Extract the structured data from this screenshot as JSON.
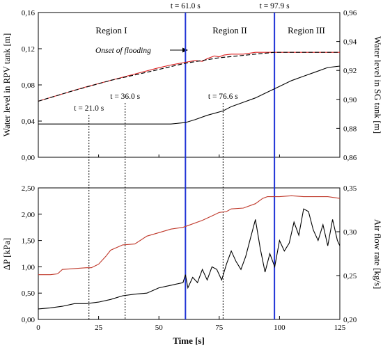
{
  "chart_data": [
    {
      "type": "line",
      "title": "",
      "xlabel": "",
      "ylabel": "Water level in RPV tank [m]",
      "ylabel_color": "#dd1f1f",
      "ylabel_right": "Water level in SG tank [m]",
      "xlim": [
        0,
        125
      ],
      "ylim": [
        0,
        0.16
      ],
      "ylim_right": [
        0.86,
        0.96
      ],
      "y_ticks": [
        "0,00",
        "0,04",
        "0,08",
        "0,12",
        "0,16"
      ],
      "y_ticks_right": [
        "0,86",
        "0,88",
        "0,90",
        "0,92",
        "0,94",
        "0,96"
      ],
      "regions": [
        "Region I",
        "Region II",
        "Region III"
      ],
      "annotation": "Onset of flooding",
      "vlines_blue": [
        {
          "x": 61.0,
          "label": "t = 61.0 s"
        },
        {
          "x": 97.9,
          "label": "t = 97.9 s"
        }
      ],
      "vlines_dotted": [
        {
          "x": 21.0,
          "label": "t = 21.0 s"
        },
        {
          "x": 36.0,
          "label": "t = 36.0 s"
        },
        {
          "x": 76.6,
          "label": "t = 76.6 s"
        }
      ],
      "series": [
        {
          "axis": "left",
          "color": "#dd1f1f",
          "dash": false,
          "x": [
            0,
            10,
            20,
            30,
            40,
            50,
            55,
            61,
            65,
            68,
            70,
            73,
            75,
            77,
            80,
            85,
            90,
            95,
            100,
            110,
            120,
            125
          ],
          "y": [
            0.062,
            0.07,
            0.078,
            0.085,
            0.092,
            0.099,
            0.102,
            0.105,
            0.107,
            0.106,
            0.109,
            0.112,
            0.111,
            0.113,
            0.114,
            0.114,
            0.116,
            0.116,
            0.116,
            0.116,
            0.116,
            0.116
          ]
        },
        {
          "axis": "left",
          "color": "#000000",
          "dash": true,
          "x": [
            0,
            15,
            30,
            45,
            61,
            75,
            90,
            97.9,
            110,
            125
          ],
          "y": [
            0.062,
            0.074,
            0.085,
            0.094,
            0.104,
            0.11,
            0.114,
            0.116,
            0.116,
            0.116
          ]
        },
        {
          "axis": "right",
          "color": "#000000",
          "dash": false,
          "x": [
            0,
            10,
            21,
            30,
            36,
            45,
            55,
            61,
            65,
            70,
            76.6,
            80,
            85,
            90,
            95,
            100,
            105,
            110,
            115,
            120,
            125
          ],
          "y": [
            0.883,
            0.883,
            0.883,
            0.883,
            0.883,
            0.883,
            0.883,
            0.884,
            0.886,
            0.889,
            0.892,
            0.895,
            0.898,
            0.901,
            0.905,
            0.909,
            0.913,
            0.916,
            0.919,
            0.922,
            0.923
          ]
        }
      ]
    },
    {
      "type": "line",
      "title": "",
      "xlabel": "Time [s]",
      "ylabel": "ΔP [kPa]",
      "ylabel_right": "Air flow rate [kg/s]",
      "ylabel_right_color": "#b23a2a",
      "xlim": [
        0,
        125
      ],
      "ylim": [
        0,
        2.5
      ],
      "ylim_right": [
        0.2,
        0.35
      ],
      "x_ticks": [
        "0",
        "25",
        "50",
        "75",
        "100",
        "125"
      ],
      "y_ticks": [
        "0,00",
        "0,50",
        "1,00",
        "1,50",
        "2,00",
        "2,50"
      ],
      "y_ticks_right": [
        "0,20",
        "0,25",
        "0,30",
        "0,35"
      ],
      "series": [
        {
          "axis": "right",
          "color": "#c0392b",
          "x": [
            0,
            5,
            8,
            10,
            15,
            20,
            22,
            25,
            28,
            30,
            35,
            40,
            45,
            50,
            55,
            60,
            62,
            68,
            72,
            75,
            78,
            80,
            85,
            90,
            93,
            95,
            100,
            105,
            110,
            115,
            120,
            125
          ],
          "y": [
            0.251,
            0.251,
            0.252,
            0.257,
            0.258,
            0.259,
            0.259,
            0.263,
            0.272,
            0.279,
            0.285,
            0.286,
            0.295,
            0.299,
            0.303,
            0.305,
            0.307,
            0.313,
            0.318,
            0.322,
            0.323,
            0.326,
            0.327,
            0.332,
            0.338,
            0.34,
            0.34,
            0.341,
            0.34,
            0.34,
            0.34,
            0.338
          ]
        },
        {
          "axis": "left",
          "color": "#000000",
          "x": [
            0,
            5,
            10,
            15,
            20,
            25,
            30,
            35,
            40,
            45,
            50,
            55,
            60,
            61,
            62,
            64,
            66,
            68,
            70,
            72,
            74,
            76,
            78,
            80,
            82,
            84,
            86,
            88,
            90,
            92,
            94,
            96,
            98,
            100,
            102,
            104,
            106,
            108,
            110,
            112,
            114,
            116,
            118,
            120,
            122,
            124,
            125
          ],
          "y": [
            0.2,
            0.22,
            0.25,
            0.3,
            0.3,
            0.33,
            0.38,
            0.45,
            0.48,
            0.5,
            0.6,
            0.65,
            0.7,
            0.85,
            0.6,
            0.8,
            0.7,
            0.95,
            0.75,
            1.0,
            0.95,
            0.75,
            1.05,
            1.3,
            1.1,
            0.95,
            1.2,
            1.55,
            1.9,
            1.35,
            0.9,
            1.25,
            1.0,
            1.5,
            1.3,
            1.45,
            1.85,
            1.6,
            2.1,
            2.05,
            1.7,
            1.5,
            1.8,
            1.4,
            1.9,
            1.5,
            1.4
          ]
        }
      ]
    }
  ]
}
